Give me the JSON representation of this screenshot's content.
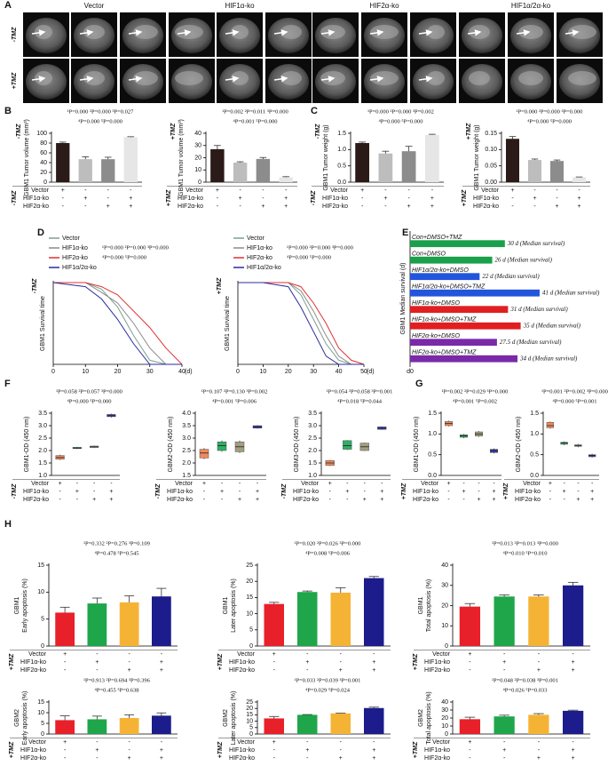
{
  "panel_labels": [
    "A",
    "B",
    "C",
    "D",
    "E",
    "F",
    "G",
    "H"
  ],
  "mri": {
    "columns": [
      "Vector",
      "HIF1α-ko",
      "HIF2α-ko",
      "HIF1α/2α-ko"
    ],
    "rows": [
      "-TMZ",
      "+TMZ"
    ]
  },
  "condition_table": {
    "rows": [
      "Vector",
      "HIF1α-ko",
      "HIF2α-ko"
    ],
    "signs": [
      [
        "+",
        "-",
        "-",
        "-"
      ],
      [
        "-",
        "+",
        "-",
        "+"
      ],
      [
        "-",
        "-",
        "+",
        "+"
      ]
    ]
  },
  "chart_data": [
    {
      "type": "bar",
      "treatment": "-TMZ",
      "ylabel": "GBM1 Tumor volume (mm³)",
      "annotations": [
        "¹P=0.000 ²P=0.000 ³P=0.027",
        "⁴P=0.000 ⁵P=0.000"
      ],
      "categories": [
        null,
        null,
        null,
        null
      ],
      "values": [
        80,
        47,
        47,
        92
      ],
      "errors": [
        2,
        5,
        4,
        1
      ],
      "colors": [
        "#2b1b18",
        "#bdbdbd",
        "#8c8c8c",
        "#e6e6e6"
      ],
      "ylim": [
        0,
        100
      ],
      "yticks": [
        0,
        20,
        40,
        60,
        80,
        100
      ]
    },
    {
      "type": "bar",
      "treatment": "+TMZ",
      "ylabel": "GBM1 Tumor volume (mm³)",
      "annotations": [
        "¹P=0.002 ²P=0.011 ³P=0.000",
        "⁴P=0.001 ⁵P=0.000"
      ],
      "categories": [
        null,
        null,
        null,
        null
      ],
      "values": [
        27,
        16,
        19,
        4
      ],
      "errors": [
        3,
        0.7,
        1.2,
        0.5
      ],
      "colors": [
        "#2b1b18",
        "#bdbdbd",
        "#8c8c8c",
        "#e6e6e6"
      ],
      "ylim": [
        0,
        40
      ],
      "yticks": [
        0,
        10,
        20,
        30,
        40
      ]
    },
    {
      "type": "bar",
      "treatment": "-TMZ",
      "ylabel": "GBM1 Tumor weight (g)",
      "annotations": [
        "¹P=0.000 ²P=0.000 ³P=0.002",
        "⁴P=0.000 ⁵P=0.000"
      ],
      "categories": [
        null,
        null,
        null,
        null
      ],
      "values": [
        1.2,
        0.88,
        0.95,
        1.45
      ],
      "errors": [
        0.03,
        0.07,
        0.15,
        0.02
      ],
      "colors": [
        "#2b1b18",
        "#bdbdbd",
        "#8c8c8c",
        "#e6e6e6"
      ],
      "ylim": [
        0,
        1.5
      ],
      "yticks": [
        {
          "value": 0,
          "label": "0.0"
        },
        0.5,
        {
          "value": 1,
          "label": "1.0"
        },
        1.5
      ]
    },
    {
      "type": "bar",
      "treatment": "+TMZ",
      "ylabel": "GBM1 Tumor weight (g)",
      "annotations": [
        "¹P=0.000 ²P=0.000 ³P=0.000",
        "⁴P=0.000 ⁵P=0.000"
      ],
      "categories": [
        null,
        null,
        null,
        null
      ],
      "values": [
        0.133,
        0.068,
        0.065,
        0.015
      ],
      "errors": [
        0.007,
        0.003,
        0.003,
        0.001
      ],
      "colors": [
        "#2b1b18",
        "#bdbdbd",
        "#8c8c8c",
        "#e6e6e6"
      ],
      "ylim": [
        0,
        0.15
      ],
      "yticks": [
        {
          "value": 0,
          "label": "0.00"
        },
        {
          "value": 0.05,
          "label": "0.05"
        },
        {
          "value": 0.1,
          "label": "0.10"
        },
        {
          "value": 0.15,
          "label": "0.15"
        }
      ]
    },
    {
      "type": "line",
      "treatment": "-TMZ",
      "ylabel": "GBM1 Survival time",
      "annotations": [
        "¹P=0.000 ²P=0.000 ³P=0.000",
        "⁴P=0.000 ⁵P=0.000"
      ],
      "x": [
        0,
        10,
        15,
        20,
        25,
        30,
        35,
        40
      ],
      "xlim": [
        0,
        40
      ],
      "xticks": [
        0,
        10,
        20,
        30,
        40
      ],
      "xlabel": "(d)",
      "ylim": [
        0,
        100
      ],
      "series": [
        {
          "name": "Vector",
          "color": "#7f9f8f",
          "values": [
            100,
            100,
            92,
            70,
            35,
            5,
            0,
            0
          ]
        },
        {
          "name": "HIF1α-ko",
          "color": "#8a8a8a",
          "values": [
            100,
            100,
            88,
            75,
            50,
            20,
            0,
            0
          ]
        },
        {
          "name": "HIF2α-ko",
          "color": "#e03030",
          "values": [
            100,
            100,
            95,
            85,
            65,
            45,
            20,
            0
          ]
        },
        {
          "name": "HIF1α/2α-ko",
          "color": "#2a2aa0",
          "values": [
            100,
            95,
            80,
            55,
            25,
            0,
            0,
            0
          ]
        }
      ]
    },
    {
      "type": "line",
      "treatment": "+TMZ",
      "ylabel": "GBM1 Survival time",
      "annotations": [
        "¹P=0.000 ²P=0.000 ³P=0.000",
        "⁴P=0.000 ⁵P=0.000"
      ],
      "x": [
        0,
        10,
        20,
        25,
        30,
        35,
        40,
        45,
        50
      ],
      "xlim": [
        0,
        50
      ],
      "xticks": [
        0,
        10,
        20,
        30,
        40,
        50
      ],
      "xlabel": "(d)",
      "ylim": [
        0,
        100
      ],
      "series": [
        {
          "name": "Vector",
          "color": "#7f9f8f",
          "values": [
            100,
            100,
            100,
            85,
            55,
            25,
            5,
            0,
            0
          ]
        },
        {
          "name": "HIF1α-ko",
          "color": "#8a8a8a",
          "values": [
            100,
            100,
            100,
            90,
            65,
            35,
            10,
            0,
            0
          ]
        },
        {
          "name": "HIF2α-ko",
          "color": "#e03030",
          "values": [
            100,
            100,
            100,
            95,
            75,
            50,
            20,
            5,
            0
          ]
        },
        {
          "name": "HIF1α/2α-ko",
          "color": "#2a2aa0",
          "values": [
            100,
            100,
            95,
            70,
            40,
            10,
            0,
            0,
            0
          ]
        }
      ]
    },
    {
      "type": "hbar",
      "ylabel": "GBM1 Median survival (d)",
      "categories": [
        "Con+DMSO+TMZ",
        "Con+DMSO",
        "HIF1α/2α-ko+DMSO",
        "HIF1α/2α-ko+DMSO+TMZ",
        "HIF1α-ko+DMSO",
        "HIF1α-ko+DMSO+TMZ",
        "HIF2α-ko+DMSO",
        "HIF2α-ko+DMSO+TMZ"
      ],
      "values": [
        30,
        26,
        22,
        41,
        31,
        35,
        27.5,
        34
      ],
      "value_labels": [
        "30 d (Median survival)",
        "26 d (Median survival)",
        "22 d (Median survival)",
        "41 d (Median survival)",
        "31 d (Median survival)",
        "35 d (Median survival)",
        "27.5 d (Median survival)",
        "34 d (Median survival)"
      ],
      "colors": [
        "#1aa04a",
        "#1aa04a",
        "#2255dd",
        "#2255dd",
        "#e02020",
        "#e02020",
        "#7a2aa8",
        "#7a2aa8"
      ],
      "xlim": [
        0,
        50
      ],
      "xticks": [
        {
          "value": 0,
          "label": "d0"
        }
      ]
    },
    {
      "type": "box",
      "treatment": "-TMZ",
      "ylabel": "GBM1-OD (450 nm)",
      "annotations": [
        "¹P=0.058 ²P=0.057 ³P=0.000",
        "⁴P=0.000 ⁵P=0.000"
      ],
      "categories": [
        null,
        null,
        null,
        null
      ],
      "values": [
        [
          1.62,
          1.65,
          1.72,
          1.8,
          1.83
        ],
        [
          2.06,
          2.08,
          2.1,
          2.13,
          2.15
        ],
        [
          2.1,
          2.12,
          2.15,
          2.18,
          2.2
        ],
        [
          3.33,
          3.36,
          3.4,
          3.45,
          3.48
        ]
      ],
      "colors": [
        "#f08a5d",
        "#2fae63",
        "#a39e7e",
        "#3b3bb3"
      ],
      "ylim": [
        1,
        3.5
      ],
      "yticks": [
        {
          "value": 1,
          "label": "1.0"
        },
        1.5,
        {
          "value": 2,
          "label": "2.0"
        },
        2.5,
        {
          "value": 3,
          "label": "3.0"
        },
        3.5
      ]
    },
    {
      "type": "box",
      "treatment": "-TMZ",
      "ylabel": "GBM2-OD (450 nm)",
      "annotations": [
        "¹P=0.107 ²P=0.130 ³P=0.002",
        "⁴P=0.001 ⁵P=0.006"
      ],
      "categories": [
        null,
        null,
        null,
        null
      ],
      "values": [
        [
          2.15,
          2.2,
          2.4,
          2.55,
          2.6
        ],
        [
          2.45,
          2.5,
          2.7,
          2.85,
          2.9
        ],
        [
          2.4,
          2.45,
          2.65,
          2.85,
          2.9
        ],
        [
          3.38,
          3.4,
          3.45,
          3.5,
          3.52
        ]
      ],
      "colors": [
        "#f08a5d",
        "#2fae63",
        "#a39e7e",
        "#3b3bb3"
      ],
      "ylim": [
        1.5,
        4
      ],
      "yticks": [
        1.5,
        {
          "value": 2,
          "label": "2.0"
        },
        2.5,
        {
          "value": 3,
          "label": "3.0"
        },
        3.5,
        {
          "value": 4,
          "label": "4.0"
        }
      ]
    },
    {
      "type": "box",
      "treatment": "-TMZ",
      "ylabel": "GBM3-OD (450 nm)",
      "annotations": [
        "¹P=0.054 ²P=0.058 ³P=0.001",
        "⁴P=0.018 ⁵P=0.044"
      ],
      "categories": [
        null,
        null,
        null,
        null
      ],
      "values": [
        [
          1.38,
          1.4,
          1.5,
          1.6,
          1.62
        ],
        [
          2.02,
          2.05,
          2.2,
          2.4,
          2.42
        ],
        [
          1.98,
          2.0,
          2.15,
          2.3,
          2.32
        ],
        [
          2.83,
          2.85,
          2.9,
          2.95,
          2.97
        ]
      ],
      "colors": [
        "#f08a5d",
        "#2fae63",
        "#a39e7e",
        "#3b3bb3"
      ],
      "ylim": [
        1,
        3.5
      ],
      "yticks": [
        {
          "value": 1,
          "label": "1.0"
        },
        1.5,
        {
          "value": 2,
          "label": "2.0"
        },
        2.5,
        {
          "value": 3,
          "label": "3.0"
        },
        3.5
      ]
    },
    {
      "type": "box",
      "treatment": "+TMZ",
      "ylabel": "GBM1-OD (450 nm)",
      "annotations": [
        "¹P=0.002 ²P=0.029 ³P=0.000",
        "⁴P=0.001 ⁵P=0.002"
      ],
      "categories": [
        null,
        null,
        null,
        null
      ],
      "values": [
        [
          1.18,
          1.2,
          1.25,
          1.3,
          1.32
        ],
        [
          0.9,
          0.92,
          0.95,
          0.98,
          1.0
        ],
        [
          0.93,
          0.95,
          1.0,
          1.05,
          1.07
        ],
        [
          0.53,
          0.55,
          0.6,
          0.63,
          0.65
        ]
      ],
      "colors": [
        "#f08a5d",
        "#2fae63",
        "#a39e7e",
        "#3b3bb3"
      ],
      "ylim": [
        0,
        1.5
      ],
      "yticks": [
        {
          "value": 0,
          "label": "0.0"
        },
        0.5,
        {
          "value": 1,
          "label": "1.0"
        },
        1.5
      ]
    },
    {
      "type": "box",
      "treatment": "+TMZ",
      "ylabel": "GBM2-OD (450 nm)",
      "annotations": [
        "¹P=0.001 ²P=0.002 ³P=0.000",
        "⁴P=0.000 ⁵P=0.001"
      ],
      "categories": [
        null,
        null,
        null,
        null
      ],
      "values": [
        [
          1.13,
          1.15,
          1.2,
          1.28,
          1.3
        ],
        [
          0.73,
          0.75,
          0.78,
          0.8,
          0.82
        ],
        [
          0.68,
          0.7,
          0.72,
          0.74,
          0.76
        ],
        [
          0.43,
          0.45,
          0.48,
          0.5,
          0.52
        ]
      ],
      "colors": [
        "#f08a5d",
        "#2fae63",
        "#a39e7e",
        "#3b3bb3"
      ],
      "ylim": [
        0,
        1.5
      ],
      "yticks": [
        {
          "value": 0,
          "label": "0.0"
        },
        0.5,
        {
          "value": 1,
          "label": "1.0"
        },
        1.5
      ]
    },
    {
      "type": "bar",
      "treatment": "+TMZ",
      "cell_line": "GBM1",
      "ylabel": "Early apoptosis (%)",
      "annotations": [
        "¹P=0.332 ²P=0.276 ³P=0.109",
        "⁴P=0.478 ⁵P=0.545"
      ],
      "categories": [
        null,
        null,
        null,
        null
      ],
      "values": [
        6.2,
        7.9,
        8.1,
        9.2
      ],
      "errors": [
        1,
        1,
        1.2,
        1.5
      ],
      "colors": [
        "#e8202a",
        "#1fa64a",
        "#f5b335",
        "#1c1c8c"
      ],
      "ylim": [
        0,
        15
      ],
      "yticks": [
        0,
        5,
        10,
        15
      ]
    },
    {
      "type": "bar",
      "treatment": "+TMZ",
      "cell_line": "GBM1",
      "ylabel": "Later apoptosis (%)",
      "annotations": [
        "¹P=0.020 ²P=0.026 ³P=0.000",
        "⁴P=0.008 ⁵P=0.006"
      ],
      "categories": [
        null,
        null,
        null,
        null
      ],
      "values": [
        13,
        16.7,
        16.5,
        21
      ],
      "errors": [
        0.5,
        0.3,
        1.5,
        0.5
      ],
      "colors": [
        "#e8202a",
        "#1fa64a",
        "#f5b335",
        "#1c1c8c"
      ],
      "ylim": [
        0,
        25
      ],
      "yticks": [
        0,
        5,
        10,
        15,
        20,
        25
      ]
    },
    {
      "type": "bar",
      "treatment": "+TMZ",
      "cell_line": "GBM1",
      "ylabel": "Total apoptosis (%)",
      "annotations": [
        "¹P=0.013 ²P=0.013 ³P=0.000",
        "⁴P=0.010 ⁵P=0.010"
      ],
      "categories": [
        null,
        null,
        null,
        null
      ],
      "values": [
        19.5,
        24.5,
        24.5,
        30
      ],
      "errors": [
        1.5,
        0.8,
        0.8,
        1.5
      ],
      "colors": [
        "#e8202a",
        "#1fa64a",
        "#f5b335",
        "#1c1c8c"
      ],
      "ylim": [
        0,
        40
      ],
      "yticks": [
        0,
        10,
        20,
        30,
        40
      ]
    },
    {
      "type": "bar",
      "treatment": "+TMZ",
      "cell_line": "GBM2",
      "ylabel": "Early apoptosis (%)",
      "annotations": [
        "¹P=0.913 ²P=0.694 ³P=0.396",
        "⁴P=0.455 ⁵P=0.638"
      ],
      "categories": [
        null,
        null,
        null,
        null
      ],
      "values": [
        6.5,
        6.9,
        7.5,
        8.6
      ],
      "errors": [
        2,
        1.5,
        1.5,
        1.3
      ],
      "colors": [
        "#e8202a",
        "#1fa64a",
        "#f5b335",
        "#1c1c8c"
      ],
      "ylim": [
        0,
        15
      ],
      "yticks": [
        0,
        5,
        10,
        15
      ]
    },
    {
      "type": "bar",
      "treatment": "+TMZ",
      "cell_line": "GBM2",
      "ylabel": "Later apoptosis (%)",
      "annotations": [
        "¹P=0.033 ²P=0.039 ³P=0.001",
        "⁴P=0.029 ⁵P=0.024"
      ],
      "categories": [
        null,
        null,
        null,
        null
      ],
      "values": [
        12.2,
        15,
        16.1,
        20.3
      ],
      "errors": [
        1.5,
        0.2,
        0.3,
        0.7
      ],
      "colors": [
        "#e8202a",
        "#1fa64a",
        "#f5b335",
        "#1c1c8c"
      ],
      "ylim": [
        0,
        25
      ],
      "yticks": [
        0,
        5,
        10,
        15,
        20,
        25
      ]
    },
    {
      "type": "bar",
      "treatment": "+TMZ",
      "cell_line": "GBM2",
      "ylabel": "Total apoptosis (%)",
      "annotations": [
        "¹P=0.048 ²P=0.038 ³P=0.001",
        "⁴P=0.026 ⁵P=0.033"
      ],
      "categories": [
        null,
        null,
        null,
        null
      ],
      "values": [
        18.5,
        22,
        24,
        29
      ],
      "errors": [
        2.5,
        1.5,
        1.5,
        0.8
      ],
      "colors": [
        "#e8202a",
        "#1fa64a",
        "#f5b335",
        "#1c1c8c"
      ],
      "ylim": [
        0,
        40
      ],
      "yticks": [
        0,
        10,
        20,
        30,
        40
      ]
    }
  ]
}
